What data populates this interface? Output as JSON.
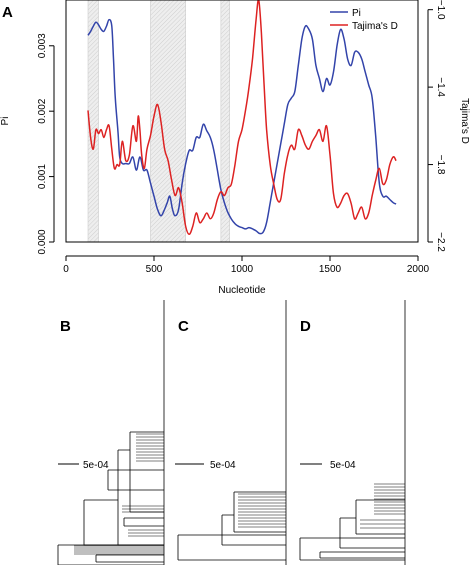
{
  "panel_labels": {
    "a": "A",
    "b": "B",
    "c": "C",
    "d": "D"
  },
  "tree_scale_label": "5e-04",
  "chart_data": {
    "type": "line",
    "title": "",
    "xlabel": "Nucleotide",
    "ylabel_left": "Pi",
    "ylabel_right": "Tajima's D",
    "xlim": [
      0,
      2000
    ],
    "x_ticks": [
      0,
      500,
      1000,
      1500,
      2000
    ],
    "ylim_left": [
      0.0,
      0.0037
    ],
    "ylim_right": [
      -2.2,
      -0.95
    ],
    "y_ticks_left": [
      "0.000",
      "0.001",
      "0.002",
      "0.003"
    ],
    "y_ticks_right": [
      "-1.0",
      "-1.4",
      "-1.8",
      "-2.2"
    ],
    "grid": false,
    "legend_position": "top-right",
    "shaded_regions": [
      [
        125,
        185
      ],
      [
        480,
        680
      ],
      [
        880,
        930
      ]
    ],
    "series": [
      {
        "name": "Pi",
        "axis": "left",
        "color": "#3344aa",
        "x": [
          125,
          140,
          155,
          170,
          185,
          200,
          215,
          230,
          245,
          260,
          270,
          280,
          295,
          305,
          320,
          340,
          360,
          380,
          400,
          420,
          440,
          460,
          480,
          500,
          520,
          540,
          560,
          575,
          590,
          605,
          620,
          640,
          660,
          680,
          700,
          720,
          740,
          760,
          780,
          800,
          820,
          840,
          860,
          880,
          900,
          920,
          940,
          960,
          980,
          1000,
          1020,
          1040,
          1060,
          1080,
          1100,
          1120,
          1140,
          1160,
          1180,
          1200,
          1220,
          1240,
          1260,
          1280,
          1300,
          1320,
          1340,
          1360,
          1380,
          1400,
          1420,
          1440,
          1460,
          1480,
          1500,
          1520,
          1540,
          1560,
          1580,
          1600,
          1620,
          1640,
          1660,
          1680,
          1700,
          1720,
          1740,
          1760,
          1780,
          1800,
          1820,
          1840,
          1860,
          1875
        ],
        "y": [
          0.00316,
          0.00322,
          0.0033,
          0.00336,
          0.00332,
          0.00325,
          0.00322,
          0.0033,
          0.0034,
          0.0033,
          0.0028,
          0.0022,
          0.0017,
          0.0013,
          0.0012,
          0.0012,
          0.0012,
          0.0013,
          0.0011,
          0.0013,
          0.0011,
          0.0011,
          0.0009,
          0.0007,
          0.0005,
          0.0004,
          0.0005,
          0.0006,
          0.0007,
          0.0005,
          0.0004,
          0.0005,
          0.0009,
          0.0012,
          0.0014,
          0.0014,
          0.0016,
          0.0016,
          0.0018,
          0.0017,
          0.0016,
          0.0014,
          0.0011,
          0.0008,
          0.0006,
          0.00045,
          0.00035,
          0.00028,
          0.00024,
          0.00022,
          0.0002,
          0.00022,
          0.0002,
          0.00017,
          0.00013,
          0.00015,
          0.0003,
          0.0006,
          0.0009,
          0.0012,
          0.0015,
          0.0018,
          0.0021,
          0.0022,
          0.0023,
          0.0027,
          0.0031,
          0.0033,
          0.00325,
          0.0031,
          0.0027,
          0.0025,
          0.0023,
          0.0025,
          0.0024,
          0.0026,
          0.003,
          0.00325,
          0.0031,
          0.0028,
          0.0027,
          0.0029,
          0.0029,
          0.0028,
          0.0026,
          0.0024,
          0.0022,
          0.0016,
          0.0009,
          0.0007,
          0.0007,
          0.00065,
          0.0006,
          0.00058
        ]
      },
      {
        "name": "Tajima's D",
        "axis": "right",
        "color": "#dd2222",
        "x": [
          125,
          140,
          155,
          170,
          185,
          200,
          215,
          230,
          245,
          260,
          275,
          290,
          305,
          320,
          340,
          360,
          380,
          400,
          410,
          420,
          430,
          445,
          460,
          480,
          500,
          520,
          540,
          560,
          580,
          600,
          620,
          640,
          660,
          680,
          700,
          720,
          740,
          760,
          780,
          800,
          820,
          840,
          860,
          880,
          900,
          920,
          940,
          960,
          980,
          1000,
          1020,
          1040,
          1060,
          1080,
          1095,
          1110,
          1125,
          1140,
          1160,
          1180,
          1200,
          1220,
          1240,
          1260,
          1280,
          1300,
          1320,
          1340,
          1360,
          1380,
          1400,
          1420,
          1440,
          1460,
          1480,
          1500,
          1520,
          1540,
          1560,
          1580,
          1600,
          1620,
          1640,
          1660,
          1680,
          1700,
          1720,
          1740,
          1760,
          1780,
          1800,
          1820,
          1840,
          1860,
          1875
        ],
        "y": [
          -1.52,
          -1.66,
          -1.72,
          -1.62,
          -1.64,
          -1.62,
          -1.66,
          -1.62,
          -1.6,
          -1.72,
          -1.82,
          -1.8,
          -1.8,
          -1.68,
          -1.78,
          -1.75,
          -1.6,
          -1.68,
          -1.55,
          -1.62,
          -1.75,
          -1.82,
          -1.72,
          -1.65,
          -1.55,
          -1.49,
          -1.58,
          -1.72,
          -1.78,
          -1.88,
          -1.96,
          -1.92,
          -2.0,
          -2.12,
          -2.16,
          -2.12,
          -2.05,
          -2.1,
          -2.08,
          -2.05,
          -2.08,
          -2.05,
          -1.98,
          -1.94,
          -1.96,
          -1.92,
          -1.9,
          -1.8,
          -1.68,
          -1.62,
          -1.52,
          -1.4,
          -1.25,
          -1.05,
          -0.95,
          -1.12,
          -1.38,
          -1.62,
          -1.8,
          -1.9,
          -1.98,
          -1.98,
          -1.85,
          -1.75,
          -1.7,
          -1.72,
          -1.62,
          -1.65,
          -1.7,
          -1.72,
          -1.68,
          -1.65,
          -1.62,
          -1.68,
          -1.6,
          -1.75,
          -1.95,
          -2.02,
          -2.0,
          -1.96,
          -1.95,
          -2.0,
          -2.08,
          -2.05,
          -2.02,
          -2.08,
          -2.05,
          -1.96,
          -1.88,
          -1.82,
          -1.9,
          -1.88,
          -1.8,
          -1.76,
          -1.78
        ]
      }
    ]
  }
}
